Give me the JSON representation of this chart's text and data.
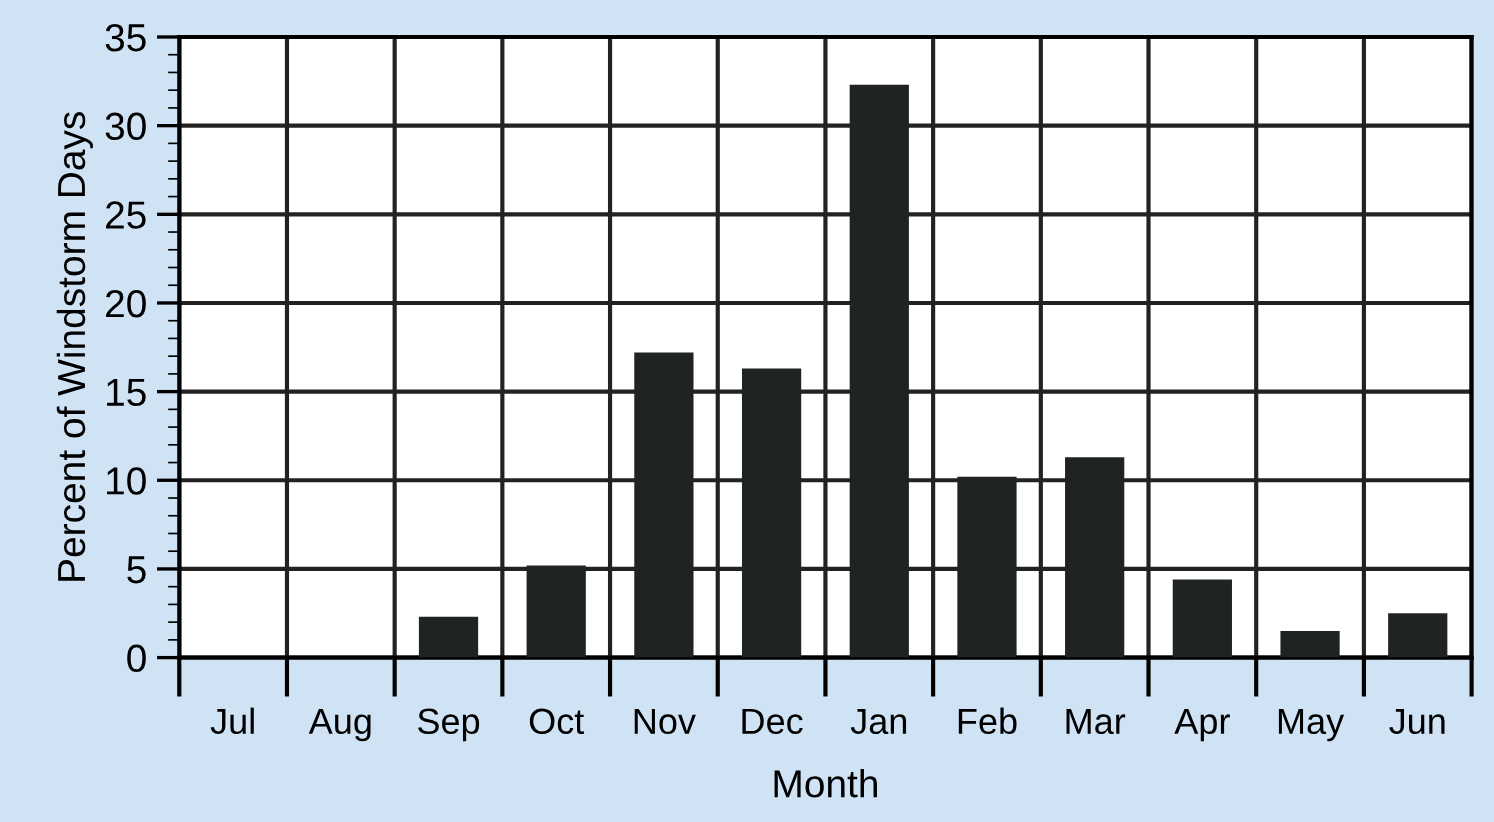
{
  "chart_data": {
    "type": "bar",
    "xlabel": "Month",
    "ylabel": "Percent of Windstorm Days",
    "categories": [
      "Jul",
      "Aug",
      "Sep",
      "Oct",
      "Nov",
      "Dec",
      "Jan",
      "Feb",
      "Mar",
      "Apr",
      "May",
      "Jun"
    ],
    "values": [
      0,
      0,
      2.3,
      5.2,
      17.2,
      16.3,
      32.3,
      10.2,
      11.3,
      4.4,
      1.5,
      2.5
    ],
    "color": "#1f2420",
    "ylim": [
      0,
      35
    ],
    "yticks": [
      0,
      5,
      10,
      15,
      20,
      25,
      30,
      35
    ],
    "grid": true
  }
}
